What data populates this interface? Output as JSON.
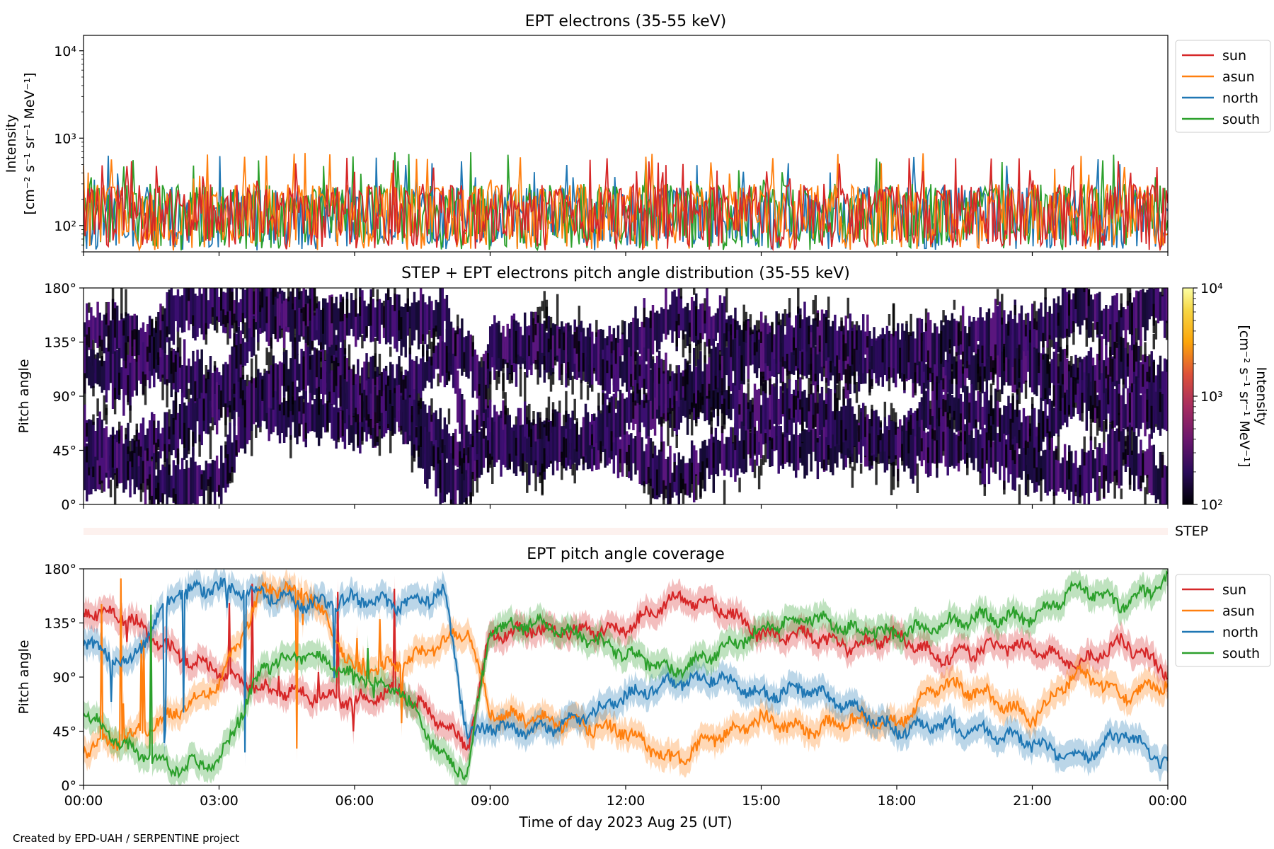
{
  "colors": {
    "sun": "#d62728",
    "asun": "#ff7f0e",
    "north": "#1f77b4",
    "south": "#2ca02c"
  },
  "footer": {
    "credit": "Created by EPD-UAH / SERPENTINE project"
  },
  "xaxis": {
    "label": "Time of day 2023 Aug 25 (UT)",
    "ticks": [
      "00:00",
      "03:00",
      "06:00",
      "09:00",
      "12:00",
      "15:00",
      "18:00",
      "21:00",
      "00:00"
    ]
  },
  "chart_data": [
    {
      "type": "line",
      "title": "EPT electrons (35-55 keV)",
      "ylabel_line1": "Intensity",
      "ylabel_line2": "[cm⁻² s⁻¹ sr⁻¹ MeV⁻¹]",
      "yscale": "log",
      "ylim": [
        50,
        15000
      ],
      "yticks": [
        {
          "value": 100,
          "label": "10²"
        },
        {
          "value": 1000,
          "label": "10³"
        },
        {
          "value": 10000,
          "label": "10⁴"
        }
      ],
      "legend": "outside-right",
      "x_range_hours": [
        0,
        24
      ],
      "series": [
        {
          "name": "sun",
          "typical": 150,
          "peak": 600
        },
        {
          "name": "asun",
          "typical": 150,
          "peak": 700
        },
        {
          "name": "north",
          "typical": 140,
          "peak": 650
        },
        {
          "name": "south",
          "typical": 150,
          "peak": 700
        }
      ]
    },
    {
      "type": "heatmap",
      "title": "STEP + EPT electrons pitch angle distribution (35-55 keV)",
      "ylabel": "Pitch angle",
      "ylim": [
        0,
        180
      ],
      "yticks": [
        "0°",
        "45°",
        "90°",
        "135°",
        "180°"
      ],
      "colorbar": {
        "label_line1": "Intensity",
        "label_line2": "[cm⁻² s⁻¹ sr⁻¹ MeV⁻¹]",
        "scale": "log",
        "range": [
          100,
          10000
        ],
        "ticks": [
          "10²",
          "10³",
          "10⁴"
        ]
      },
      "dominant_value": 150,
      "x_range_hours": [
        0,
        24
      ]
    },
    {
      "type": "bar",
      "label": "STEP",
      "x_range_hours": [
        0,
        24
      ]
    },
    {
      "type": "line",
      "title": "EPT pitch angle coverage",
      "ylabel": "Pitch angle",
      "ylim": [
        0,
        180
      ],
      "yticks": [
        "0°",
        "45°",
        "90°",
        "135°",
        "180°"
      ],
      "legend": "outside-right",
      "x_hours": [
        0,
        1,
        2,
        3,
        4,
        5,
        6,
        7,
        8,
        8.5,
        9,
        10,
        11,
        12,
        13,
        14,
        15,
        16,
        17,
        18,
        19,
        20,
        21,
        22,
        23,
        24
      ],
      "series": [
        {
          "name": "sun",
          "values": [
            145,
            140,
            110,
            95,
            80,
            75,
            70,
            80,
            50,
            30,
            125,
            130,
            128,
            130,
            155,
            150,
            125,
            125,
            115,
            125,
            105,
            115,
            115,
            100,
            120,
            95
          ]
        },
        {
          "name": "asun",
          "values": [
            30,
            40,
            60,
            85,
            165,
            160,
            95,
            100,
            120,
            130,
            60,
            55,
            50,
            45,
            20,
            40,
            55,
            45,
            55,
            50,
            85,
            75,
            55,
            95,
            75,
            85
          ]
        },
        {
          "name": "north",
          "values": [
            120,
            100,
            160,
            165,
            160,
            150,
            155,
            150,
            160,
            40,
            50,
            45,
            55,
            75,
            85,
            90,
            75,
            80,
            65,
            45,
            50,
            45,
            35,
            20,
            45,
            15
          ]
        },
        {
          "name": "south",
          "values": [
            60,
            30,
            15,
            20,
            100,
            110,
            90,
            80,
            20,
            10,
            130,
            135,
            125,
            110,
            95,
            110,
            130,
            140,
            130,
            125,
            135,
            140,
            140,
            165,
            150,
            170
          ]
        }
      ]
    }
  ]
}
